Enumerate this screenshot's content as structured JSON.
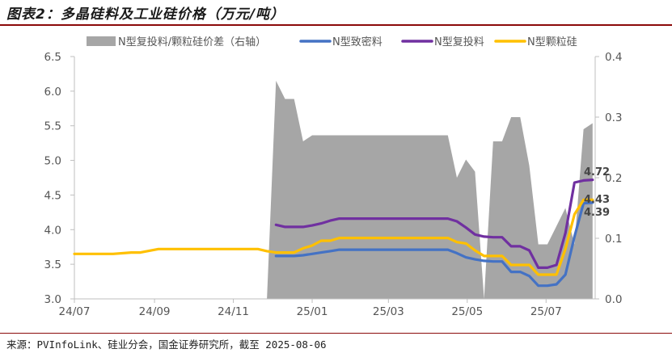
{
  "header": {
    "title": "图表2：多晶硅料及工业硅价格（万元/吨）"
  },
  "footer": {
    "source": "来源：PVInfoLink、硅业分会，国金证券研究所，截至 2025-08-06"
  },
  "colors": {
    "spread": "#a6a6a6",
    "dense": "#4472c4",
    "recharge": "#7030a0",
    "granular": "#ffc000",
    "axis": "#bfbfbf",
    "rule": "#8b0a0a"
  },
  "chart_data": {
    "type": "line",
    "x_ticks": [
      "24/07",
      "24/09",
      "24/11",
      "25/01",
      "25/03",
      "25/05",
      "25/07"
    ],
    "ylim_left": [
      3.0,
      6.5
    ],
    "ylim_right": [
      0.0,
      0.4
    ],
    "y_ticks_left": [
      "3.0",
      "3.5",
      "4.0",
      "4.5",
      "5.0",
      "5.5",
      "6.0",
      "6.5"
    ],
    "y_ticks_right": [
      "0.0",
      "0.1",
      "0.2",
      "0.3",
      "0.4"
    ],
    "grid": false,
    "legend_position": "top",
    "x": [
      "2024-07-01",
      "2024-07-24",
      "2024-07-31",
      "2024-08-14",
      "2024-08-21",
      "2024-09-04",
      "2024-09-11",
      "2024-10-09",
      "2024-10-23",
      "2024-11-20",
      "2024-11-27",
      "2024-12-04",
      "2024-12-11",
      "2024-12-18",
      "2024-12-25",
      "2025-01-01",
      "2025-01-08",
      "2025-01-15",
      "2025-01-22",
      "2025-02-05",
      "2025-02-19",
      "2025-03-05",
      "2025-03-19",
      "2025-04-02",
      "2025-04-16",
      "2025-04-23",
      "2025-04-30",
      "2025-05-07",
      "2025-05-14",
      "2025-05-21",
      "2025-05-28",
      "2025-06-04",
      "2025-06-11",
      "2025-06-18",
      "2025-06-25",
      "2025-07-02",
      "2025-07-09",
      "2025-07-16",
      "2025-07-23",
      "2025-07-30",
      "2025-08-06"
    ],
    "series": [
      {
        "name": "N型复投料/颗粒硅价差（右轴）",
        "type": "area",
        "axis": "right",
        "color": "#a6a6a6",
        "values": [
          null,
          null,
          null,
          null,
          null,
          null,
          null,
          null,
          null,
          0.0,
          0.0,
          0.36,
          0.33,
          0.33,
          0.26,
          0.27,
          0.27,
          0.27,
          0.27,
          0.27,
          0.27,
          0.27,
          0.27,
          0.27,
          0.27,
          0.2,
          0.23,
          0.21,
          0.0,
          0.26,
          0.26,
          0.3,
          0.3,
          0.22,
          0.09,
          0.09,
          0.12,
          0.15,
          0.09,
          0.28,
          0.29
        ]
      },
      {
        "name": "N型致密料",
        "axis": "left",
        "color": "#4472c4",
        "values": [
          null,
          null,
          null,
          null,
          null,
          null,
          null,
          null,
          null,
          null,
          null,
          3.62,
          3.62,
          3.62,
          3.63,
          3.65,
          3.67,
          3.69,
          3.71,
          3.71,
          3.71,
          3.71,
          3.71,
          3.71,
          3.71,
          3.66,
          3.6,
          3.57,
          3.55,
          3.54,
          3.54,
          3.39,
          3.39,
          3.33,
          3.19,
          3.19,
          3.21,
          3.35,
          3.9,
          4.38,
          4.39
        ]
      },
      {
        "name": "N型复投料",
        "axis": "left",
        "color": "#7030a0",
        "values": [
          null,
          null,
          null,
          null,
          null,
          null,
          null,
          null,
          null,
          null,
          null,
          4.07,
          4.04,
          4.04,
          4.04,
          4.06,
          4.09,
          4.13,
          4.16,
          4.16,
          4.16,
          4.16,
          4.16,
          4.16,
          4.16,
          4.12,
          4.03,
          3.93,
          3.9,
          3.89,
          3.89,
          3.76,
          3.76,
          3.7,
          3.45,
          3.45,
          3.49,
          3.95,
          4.68,
          4.71,
          4.72
        ]
      },
      {
        "name": "N型颗粒硅",
        "axis": "left",
        "color": "#ffc000",
        "values": [
          3.65,
          3.65,
          3.65,
          3.67,
          3.67,
          3.72,
          3.72,
          3.72,
          3.72,
          3.72,
          3.69,
          3.67,
          3.67,
          3.67,
          3.73,
          3.77,
          3.84,
          3.84,
          3.88,
          3.88,
          3.88,
          3.88,
          3.88,
          3.88,
          3.88,
          3.82,
          3.8,
          3.7,
          3.62,
          3.62,
          3.62,
          3.49,
          3.49,
          3.49,
          3.35,
          3.35,
          3.35,
          3.72,
          4.22,
          4.43,
          4.43
        ]
      }
    ],
    "end_labels": [
      {
        "text": "4.72",
        "value": 4.72,
        "series": "N型复投料"
      },
      {
        "text": "4.43",
        "value": 4.43,
        "series": "N型颗粒硅"
      },
      {
        "text": "4.39",
        "value": 4.39,
        "series": "N型致密料"
      }
    ]
  }
}
